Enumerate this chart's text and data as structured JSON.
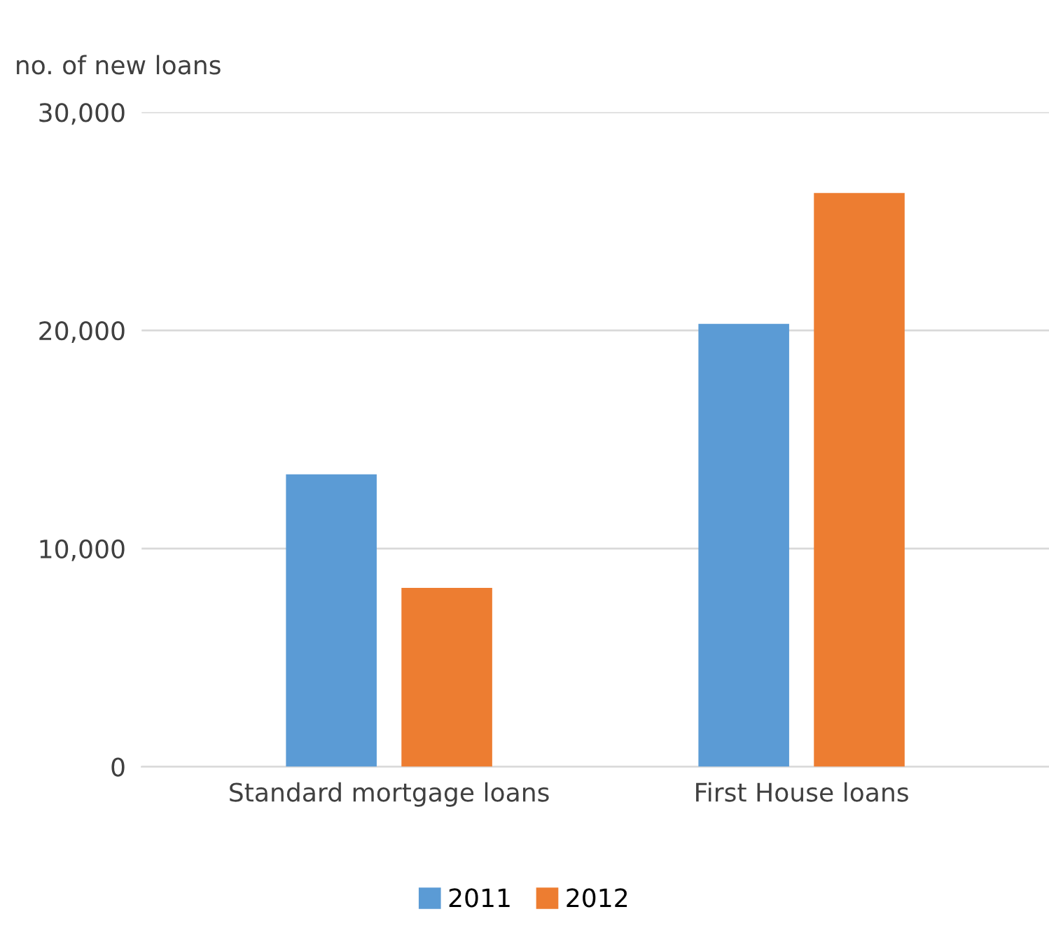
{
  "chart_data": {
    "type": "bar",
    "ylabel": "no. of new loans",
    "categories": [
      "Standard mortgage loans",
      "First House loans"
    ],
    "series": [
      {
        "name": "2011",
        "color": "#5b9bd5",
        "values": [
          13400,
          20300
        ]
      },
      {
        "name": "2012",
        "color": "#ed7d31",
        "values": [
          8200,
          26300
        ]
      }
    ],
    "ylim": [
      0,
      30000
    ],
    "yticks": [
      {
        "value": 0,
        "label": "0"
      },
      {
        "value": 10000,
        "label": "10,000"
      },
      {
        "value": 20000,
        "label": "20,000"
      },
      {
        "value": 30000,
        "label": "30,000"
      }
    ],
    "grid": "y",
    "legend": "bottom"
  }
}
